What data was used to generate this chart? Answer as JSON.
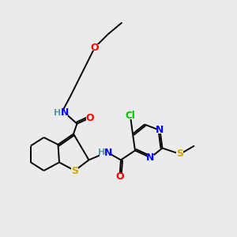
{
  "bg_color": "#ebebeb",
  "bond_color": "#000000",
  "atom_colors": {
    "O": "#ff0000",
    "N": "#0000ff",
    "S": "#ccaa00",
    "Cl": "#00bb00",
    "C": "#000000",
    "H": "#5599aa"
  },
  "figsize": [
    3.0,
    3.0
  ],
  "dpi": 100
}
